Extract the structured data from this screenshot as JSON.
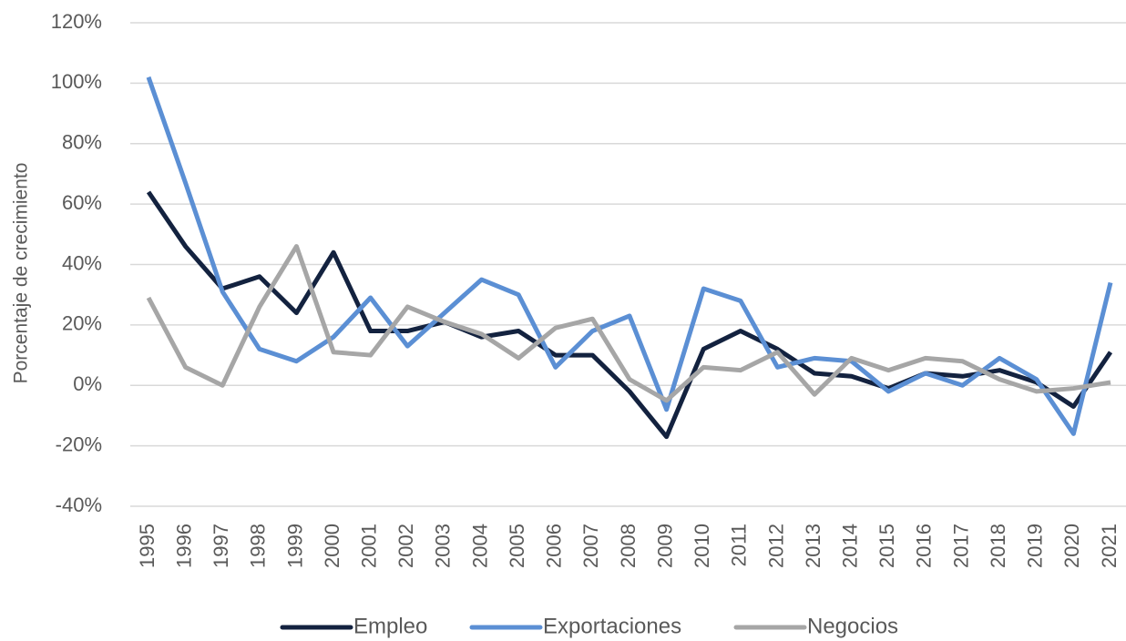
{
  "chart_data": {
    "type": "line",
    "ylabel": "Porcentaje de crecimiento",
    "categories": [
      "1995",
      "1996",
      "1997",
      "1998",
      "1999",
      "2000",
      "2001",
      "2002",
      "2003",
      "2004",
      "2005",
      "2006",
      "2007",
      "2008",
      "2009",
      "2010",
      "2011",
      "2012",
      "2013",
      "2014",
      "2015",
      "2016",
      "2017",
      "2018",
      "2019",
      "2020",
      "2021"
    ],
    "series": [
      {
        "name": "Empleo",
        "color": "#13223f",
        "values": [
          64,
          46,
          32,
          36,
          24,
          44,
          18,
          18,
          21,
          16,
          18,
          10,
          10,
          -2,
          -17,
          12,
          18,
          12,
          4,
          3,
          -1,
          4,
          3,
          5,
          1,
          -7,
          11
        ]
      },
      {
        "name": "Exportaciones",
        "color": "#5b8fd4",
        "values": [
          102,
          67,
          31,
          12,
          8,
          16,
          29,
          13,
          24,
          35,
          30,
          6,
          18,
          23,
          -8,
          32,
          28,
          6,
          9,
          8,
          -2,
          4,
          0,
          9,
          2,
          -16,
          34
        ]
      },
      {
        "name": "Negocios",
        "color": "#a6a6a6",
        "values": [
          29,
          6,
          0,
          26,
          46,
          11,
          10,
          26,
          21,
          17,
          9,
          19,
          22,
          2,
          -5,
          6,
          5,
          11,
          -3,
          9,
          5,
          9,
          8,
          2,
          -2,
          -1,
          1
        ]
      }
    ],
    "ylim": [
      -40,
      120
    ],
    "yticks": [
      {
        "value": -40,
        "label": "-40%"
      },
      {
        "value": -20,
        "label": "-20%"
      },
      {
        "value": 0,
        "label": "0%"
      },
      {
        "value": 20,
        "label": "20%"
      },
      {
        "value": 40,
        "label": "40%"
      },
      {
        "value": 60,
        "label": "60%"
      },
      {
        "value": 80,
        "label": "80%"
      },
      {
        "value": 100,
        "label": "100%"
      },
      {
        "value": 120,
        "label": "120%"
      }
    ],
    "grid": true,
    "legend": "bottom"
  }
}
